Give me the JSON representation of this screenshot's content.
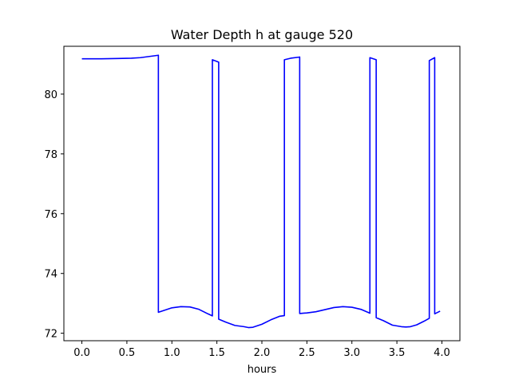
{
  "chart_data": {
    "type": "line",
    "title": "Water Depth h at gauge 520",
    "xlabel": "hours",
    "ylabel": "",
    "xlim": [
      -0.2,
      4.2
    ],
    "ylim": [
      71.75,
      81.6
    ],
    "xticks": [
      0.0,
      0.5,
      1.0,
      1.5,
      2.0,
      2.5,
      3.0,
      3.5,
      4.0
    ],
    "xtick_labels": [
      "0.0",
      "0.5",
      "1.0",
      "1.5",
      "2.0",
      "2.5",
      "3.0",
      "3.5",
      "4.0"
    ],
    "yticks": [
      72,
      74,
      76,
      78,
      80
    ],
    "ytick_labels": [
      "72",
      "74",
      "76",
      "78",
      "80"
    ],
    "grid": false,
    "series": [
      {
        "color": "#0000ff",
        "points": [
          [
            0.0,
            81.18
          ],
          [
            0.2,
            81.18
          ],
          [
            0.4,
            81.19
          ],
          [
            0.55,
            81.2
          ],
          [
            0.65,
            81.22
          ],
          [
            0.75,
            81.26
          ],
          [
            0.85,
            81.3
          ],
          [
            0.85,
            72.7
          ],
          [
            0.9,
            72.75
          ],
          [
            1.0,
            72.85
          ],
          [
            1.1,
            72.89
          ],
          [
            1.2,
            72.88
          ],
          [
            1.3,
            72.8
          ],
          [
            1.4,
            72.65
          ],
          [
            1.45,
            72.58
          ],
          [
            1.45,
            81.15
          ],
          [
            1.52,
            81.07
          ],
          [
            1.52,
            72.47
          ],
          [
            1.6,
            72.37
          ],
          [
            1.7,
            72.26
          ],
          [
            1.8,
            72.22
          ],
          [
            1.85,
            72.19
          ],
          [
            1.9,
            72.2
          ],
          [
            2.0,
            72.3
          ],
          [
            2.1,
            72.45
          ],
          [
            2.2,
            72.57
          ],
          [
            2.25,
            72.59
          ],
          [
            2.25,
            81.15
          ],
          [
            2.32,
            81.2
          ],
          [
            2.42,
            81.24
          ],
          [
            2.42,
            72.66
          ],
          [
            2.5,
            72.68
          ],
          [
            2.6,
            72.72
          ],
          [
            2.7,
            72.79
          ],
          [
            2.8,
            72.86
          ],
          [
            2.9,
            72.89
          ],
          [
            3.0,
            72.87
          ],
          [
            3.1,
            72.8
          ],
          [
            3.2,
            72.67
          ],
          [
            3.2,
            81.22
          ],
          [
            3.27,
            81.15
          ],
          [
            3.27,
            72.52
          ],
          [
            3.35,
            72.42
          ],
          [
            3.45,
            72.27
          ],
          [
            3.55,
            72.22
          ],
          [
            3.6,
            72.21
          ],
          [
            3.65,
            72.22
          ],
          [
            3.72,
            72.28
          ],
          [
            3.8,
            72.4
          ],
          [
            3.86,
            72.5
          ],
          [
            3.86,
            81.12
          ],
          [
            3.92,
            81.22
          ],
          [
            3.92,
            72.65
          ],
          [
            3.98,
            72.74
          ]
        ]
      }
    ]
  }
}
